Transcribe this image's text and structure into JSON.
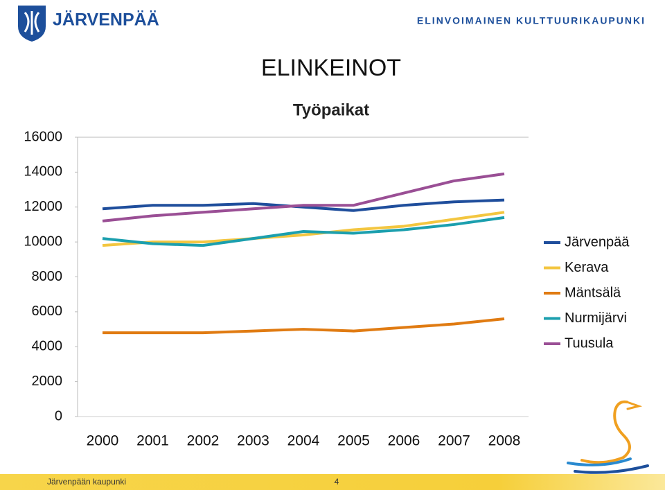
{
  "header": {
    "brand": "JÄRVENPÄÄ",
    "tagline": "ELINVOIMAINEN KULTTUURIKAUPUNKI"
  },
  "footer": {
    "org": "Järvenpään kaupunki",
    "page": "4"
  },
  "chart_data": {
    "type": "line",
    "title": "ELINKEINOT",
    "subtitle": "Työpaikat",
    "categories": [
      "2000",
      "2001",
      "2002",
      "2003",
      "2004",
      "2005",
      "2006",
      "2007",
      "2008"
    ],
    "series": [
      {
        "name": "Järvenpää",
        "color": "#1f4e9c",
        "values": [
          11900,
          12100,
          12100,
          12200,
          12000,
          11800,
          12100,
          12300,
          12400
        ]
      },
      {
        "name": "Kerava",
        "color": "#f3c640",
        "values": [
          9800,
          10000,
          10000,
          10200,
          10400,
          10700,
          10900,
          11300,
          11700
        ]
      },
      {
        "name": "Mäntsälä",
        "color": "#e07b12",
        "values": [
          4800,
          4800,
          4800,
          4900,
          5000,
          4900,
          5100,
          5300,
          5600
        ]
      },
      {
        "name": "Nurmijärvi",
        "color": "#1b9fae",
        "values": [
          10200,
          9900,
          9800,
          10200,
          10600,
          10500,
          10700,
          11000,
          11400
        ]
      },
      {
        "name": "Tuusula",
        "color": "#9a4f95",
        "values": [
          11200,
          11500,
          11700,
          11900,
          12100,
          12100,
          12800,
          13500,
          13900
        ]
      }
    ],
    "ylim": [
      0,
      16000
    ],
    "yticks": [
      0,
      2000,
      4000,
      6000,
      8000,
      10000,
      12000,
      14000,
      16000
    ],
    "grid": false,
    "legend": "right"
  }
}
